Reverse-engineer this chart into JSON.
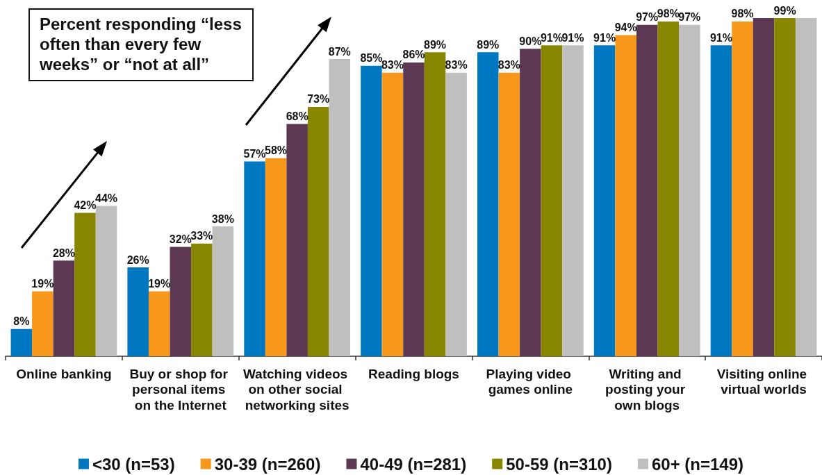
{
  "chart_data": {
    "type": "bar",
    "categories": [
      "Online banking",
      "Buy or shop for personal items on the Internet",
      "Watching videos on other social networking sites",
      "Reading blogs",
      "Playing video games online",
      "Writing and posting your own blogs",
      "Visiting online virtual worlds"
    ],
    "series": [
      {
        "name": "<30 (n=53)",
        "color": "#0078c1",
        "values": [
          8,
          26,
          57,
          85,
          89,
          91,
          91
        ],
        "value_labels": [
          "8%",
          "26%",
          "57%",
          "85%",
          "89%",
          "91%",
          "91%"
        ]
      },
      {
        "name": "30-39 (n=260)",
        "color": "#f7981d",
        "values": [
          19,
          19,
          58,
          83,
          83,
          94,
          98
        ],
        "value_labels": [
          "19%",
          "19%",
          "58%",
          "83%",
          "83%",
          "94%",
          "98%"
        ]
      },
      {
        "name": "40-49 (n=281)",
        "color": "#5d3852",
        "values": [
          28,
          32,
          68,
          86,
          90,
          97,
          99
        ],
        "value_labels": [
          "28%",
          "32%",
          "68%",
          "86%",
          "90%",
          "97%",
          null
        ]
      },
      {
        "name": "50-59 (n=310)",
        "color": "#888500",
        "values": [
          42,
          33,
          73,
          89,
          91,
          98,
          99
        ],
        "value_labels": [
          "42%",
          "33%",
          "73%",
          "89%",
          "91%",
          "98%",
          "99%"
        ]
      },
      {
        "name": "60+ (n=149)",
        "color": "#bfbfbf",
        "values": [
          44,
          38,
          87,
          83,
          91,
          97,
          99
        ],
        "value_labels": [
          "44%",
          "38%",
          "87%",
          "83%",
          "91%",
          "97%",
          null
        ]
      }
    ],
    "annotations": [
      "Percent responding “less often than every few weeks” or “not at all”"
    ],
    "legend": "bottom",
    "tick_labels": "x"
  }
}
